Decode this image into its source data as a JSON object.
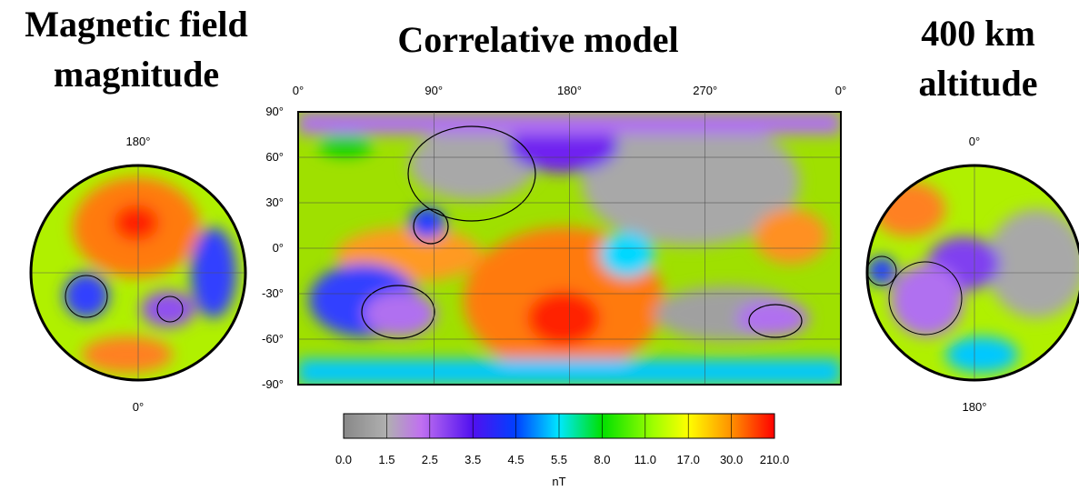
{
  "titles": {
    "left": [
      "Magnetic field",
      "magnitude"
    ],
    "center": "Correlative model",
    "right": [
      "400 km",
      "altitude"
    ]
  },
  "map": {
    "lon_labels": [
      "0°",
      "90°",
      "180°",
      "270°",
      "0°"
    ],
    "lat_labels": [
      "90°",
      "60°",
      "30°",
      "0°",
      "-30°",
      "-60°",
      "-90°"
    ]
  },
  "left_polar": {
    "top_label": "180°",
    "bottom_label": "0°"
  },
  "right_polar": {
    "top_label": "0°",
    "bottom_label": "180°"
  },
  "colorbar": {
    "labels": [
      "0.0",
      "1.5",
      "2.5",
      "3.5",
      "4.5",
      "5.5",
      "8.0",
      "11.0",
      "17.0",
      "30.0",
      "210.0"
    ],
    "unit": "nT"
  }
}
